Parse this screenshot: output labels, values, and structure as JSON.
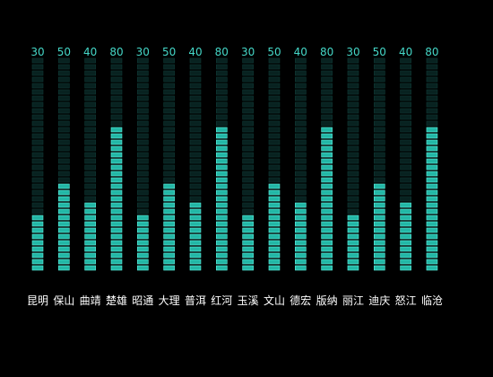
{
  "chart_data": {
    "type": "bar",
    "categories": [
      "昆明",
      "保山",
      "曲靖",
      "楚雄",
      "昭通",
      "大理",
      "普洱",
      "红河",
      "玉溪",
      "文山",
      "德宏",
      "版纳",
      "丽江",
      "迪庆",
      "怒江",
      "临沧"
    ],
    "values": [
      30,
      50,
      40,
      80,
      30,
      50,
      40,
      80,
      30,
      50,
      40,
      80,
      30,
      50,
      40,
      80
    ],
    "ylim": [
      0,
      120
    ],
    "grid": false,
    "legend": "none",
    "style": "segmented-led"
  },
  "colors": {
    "background": "#000000",
    "bar_on": "#23b7a6",
    "bar_on_stroke": "#5ff3e2",
    "bar_off": "#082220",
    "bar_off_stroke": "#0f3a36",
    "value_label": "#45d8c8",
    "category_label": "#ffffff"
  }
}
